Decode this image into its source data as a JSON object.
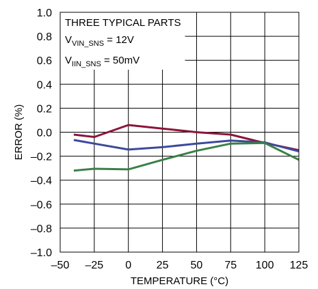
{
  "chart_data": {
    "type": "line",
    "title": "",
    "xlabel": "TEMPERATURE (°C)",
    "ylabel": "ERROR (%)",
    "xlim": [
      -50,
      125
    ],
    "ylim": [
      -1.0,
      1.0
    ],
    "x_ticks": [
      -50,
      -25,
      0,
      25,
      50,
      75,
      100,
      125
    ],
    "x_tick_labels": [
      "–50",
      "–25",
      "0",
      "25",
      "50",
      "75",
      "100",
      "125"
    ],
    "y_ticks": [
      -1.0,
      -0.8,
      -0.6,
      -0.4,
      -0.2,
      0.0,
      0.2,
      0.4,
      0.6,
      0.8,
      1.0
    ],
    "y_tick_labels": [
      "–1.0",
      "–0.8",
      "–0.6",
      "–0.4",
      "–0.2",
      "0.0",
      "0.2",
      "0.4",
      "0.6",
      "0.8",
      "1.0"
    ],
    "grid": true,
    "annotations": {
      "line1": "THREE TYPICAL PARTS",
      "line2_prefix": "V",
      "line2_sub": "VIN_SNS",
      "line2_suffix": " = 12V",
      "line3_prefix": "V",
      "line3_sub": "IIN_SNS",
      "line3_suffix": " = 50mV"
    },
    "series": [
      {
        "color": "#8b1538",
        "points": [
          [
            -40,
            -0.02
          ],
          [
            -25,
            -0.04
          ],
          [
            0,
            0.06
          ],
          [
            25,
            0.03
          ],
          [
            50,
            0.0
          ],
          [
            75,
            -0.02
          ],
          [
            100,
            -0.09
          ],
          [
            125,
            -0.15
          ]
        ]
      },
      {
        "color": "#3c4a9a",
        "points": [
          [
            -40,
            -0.065
          ],
          [
            -25,
            -0.095
          ],
          [
            0,
            -0.145
          ],
          [
            25,
            -0.125
          ],
          [
            50,
            -0.095
          ],
          [
            75,
            -0.07
          ],
          [
            100,
            -0.085
          ],
          [
            125,
            -0.16
          ]
        ]
      },
      {
        "color": "#3a8048",
        "points": [
          [
            -40,
            -0.32
          ],
          [
            -25,
            -0.305
          ],
          [
            0,
            -0.31
          ],
          [
            25,
            -0.23
          ],
          [
            50,
            -0.155
          ],
          [
            75,
            -0.095
          ],
          [
            100,
            -0.09
          ],
          [
            125,
            -0.23
          ]
        ]
      }
    ]
  }
}
